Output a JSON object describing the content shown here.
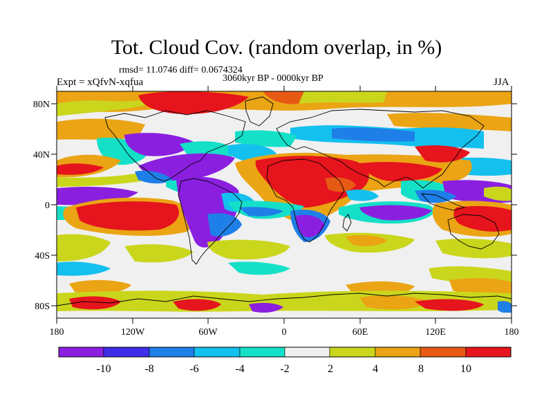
{
  "header": {
    "title": "Tot. Cloud Cov. (random overlap, in %)",
    "stats": "rmsd= 11.0746 diff= 0.0674324",
    "period": "3060kyr BP - 0000kyr BP",
    "experiment": "Expt = xQfvN-xqfua",
    "season": "JJA"
  },
  "map": {
    "lat_labels": [
      "80N",
      "40N",
      "0",
      "40S",
      "80S"
    ],
    "lon_labels": [
      "180",
      "120W",
      "60W",
      "0",
      "60E",
      "120E",
      "180"
    ],
    "colors": {
      "purple": "#8b1fe0",
      "blue_violet": "#3f2ee8",
      "blue": "#1f7fe8",
      "light_blue": "#14c0ee",
      "cyan": "#14e0c8",
      "white": "#f0f0f0",
      "yellow_green": "#cad61c",
      "orange": "#eaa414",
      "dark_orange": "#e65a14",
      "red": "#e6141c"
    }
  },
  "legend": {
    "labels": [
      "-10",
      "-8",
      "-6",
      "-4",
      "-2",
      "2",
      "4",
      "8",
      "10"
    ],
    "colors": [
      "#8b1fe0",
      "#3f2ee8",
      "#1f7fe8",
      "#14c0ee",
      "#14e0c8",
      "#f0f0f0",
      "#cad61c",
      "#eaa414",
      "#e65a14",
      "#e6141c"
    ]
  }
}
